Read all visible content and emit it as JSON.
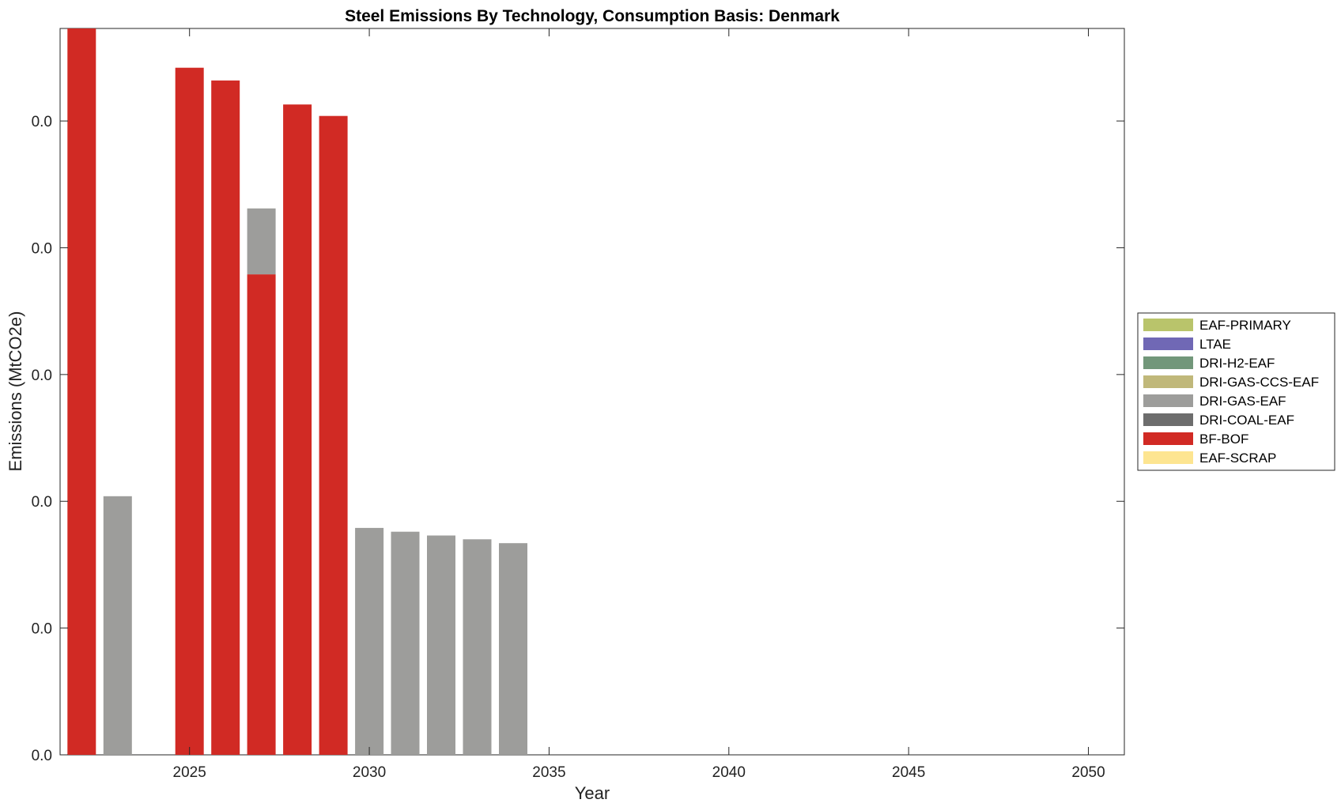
{
  "chart_data": {
    "type": "bar",
    "stacked": true,
    "title": "Steel Emissions By Technology, Consumption Basis: Denmark",
    "xlabel": "Year",
    "ylabel": "Emissions (MtCO2e)",
    "x": [
      2022,
      2023,
      2024,
      2025,
      2026,
      2027,
      2028,
      2029,
      2030,
      2031,
      2032,
      2033,
      2034,
      2035,
      2036,
      2037,
      2038,
      2039,
      2040,
      2041,
      2042,
      2043,
      2044,
      2045,
      2046,
      2047,
      2048,
      2049,
      2050
    ],
    "xlim": [
      2021.4,
      2051.0
    ],
    "xticks": [
      2025,
      2030,
      2035,
      2040,
      2045,
      2050
    ],
    "ylim": [
      0,
      0.0573
    ],
    "yticks": [
      0,
      0.01,
      0.02,
      0.03,
      0.04,
      0.05
    ],
    "ytick_labels": [
      "0.0",
      "0.0",
      "0.0",
      "0.0",
      "0.0",
      "0.0"
    ],
    "grid": false,
    "legend_position": "right",
    "series": [
      {
        "name": "EAF-PRIMARY",
        "color": "#b9c46b",
        "values": [
          0,
          0,
          0,
          0,
          0,
          0,
          0,
          0,
          0,
          0,
          0,
          0,
          0,
          0,
          0,
          0,
          0,
          0,
          0,
          0,
          0,
          0,
          0,
          0,
          0,
          0,
          0,
          0,
          0
        ]
      },
      {
        "name": "LTAE",
        "color": "#7068b5",
        "values": [
          0,
          0,
          0,
          0,
          0,
          0,
          0,
          0,
          0,
          0,
          0,
          0,
          0,
          0,
          0,
          0,
          0,
          0,
          0,
          0,
          0,
          0,
          0,
          0,
          0,
          0,
          0,
          0,
          0
        ]
      },
      {
        "name": "DRI-H2-EAF",
        "color": "#72977a",
        "values": [
          0,
          0,
          0,
          0,
          0,
          0,
          0,
          0,
          0,
          0,
          0,
          0,
          0,
          0,
          0,
          0,
          0,
          0,
          0,
          0,
          0,
          0,
          0,
          0,
          0,
          0,
          0,
          0,
          0
        ]
      },
      {
        "name": "DRI-GAS-CCS-EAF",
        "color": "#c0b87a",
        "values": [
          0,
          0,
          0,
          0,
          0,
          0,
          0,
          0,
          0,
          0,
          0,
          0,
          0,
          0,
          0,
          0,
          0,
          0,
          0,
          0,
          0,
          0,
          0,
          0,
          0,
          0,
          0,
          0,
          0
        ]
      },
      {
        "name": "DRI-GAS-EAF",
        "color": "#9d9d9b",
        "values": [
          0,
          0.0204,
          0,
          0,
          0,
          0.0052,
          0,
          0,
          0.0179,
          0.0176,
          0.0173,
          0.017,
          0.0167,
          0,
          0,
          0,
          0,
          0,
          0,
          0,
          0,
          0,
          0,
          0,
          0,
          0,
          0,
          0,
          0
        ]
      },
      {
        "name": "DRI-COAL-EAF",
        "color": "#6d6d6d",
        "values": [
          0,
          0,
          0,
          0,
          0,
          0,
          0,
          0,
          0,
          0,
          0,
          0,
          0,
          0,
          0,
          0,
          0,
          0,
          0,
          0,
          0,
          0,
          0,
          0,
          0,
          0,
          0,
          0,
          0
        ]
      },
      {
        "name": "BF-BOF",
        "color": "#d12a24",
        "values": [
          0.0573,
          0,
          0,
          0.0542,
          0.0532,
          0.0379,
          0.0513,
          0.0504,
          0,
          0,
          0,
          0,
          0,
          0,
          0,
          0,
          0,
          0,
          0,
          0,
          0,
          0,
          0,
          0,
          0,
          0,
          0,
          0,
          0
        ]
      },
      {
        "name": "EAF-SCRAP",
        "color": "#fde591",
        "values": [
          0,
          0,
          0,
          0,
          0,
          0,
          0,
          0,
          0,
          0,
          0,
          0,
          0,
          0,
          0,
          0,
          0,
          0,
          0,
          0,
          0,
          0,
          0,
          0,
          0,
          0,
          0,
          0,
          0
        ]
      }
    ]
  }
}
